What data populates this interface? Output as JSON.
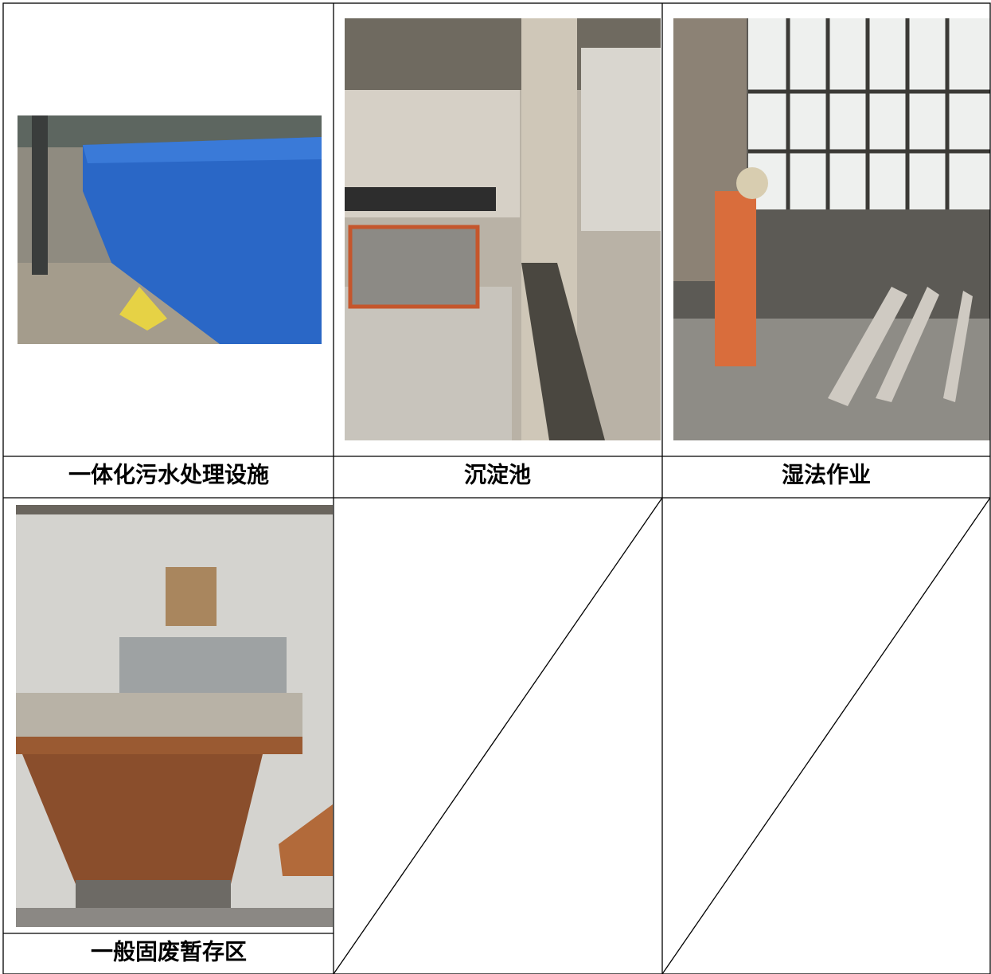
{
  "table": {
    "captions": [
      "一体化污水处理设施",
      "沉淀池",
      "湿法作业",
      "一般固废暂存区"
    ]
  }
}
